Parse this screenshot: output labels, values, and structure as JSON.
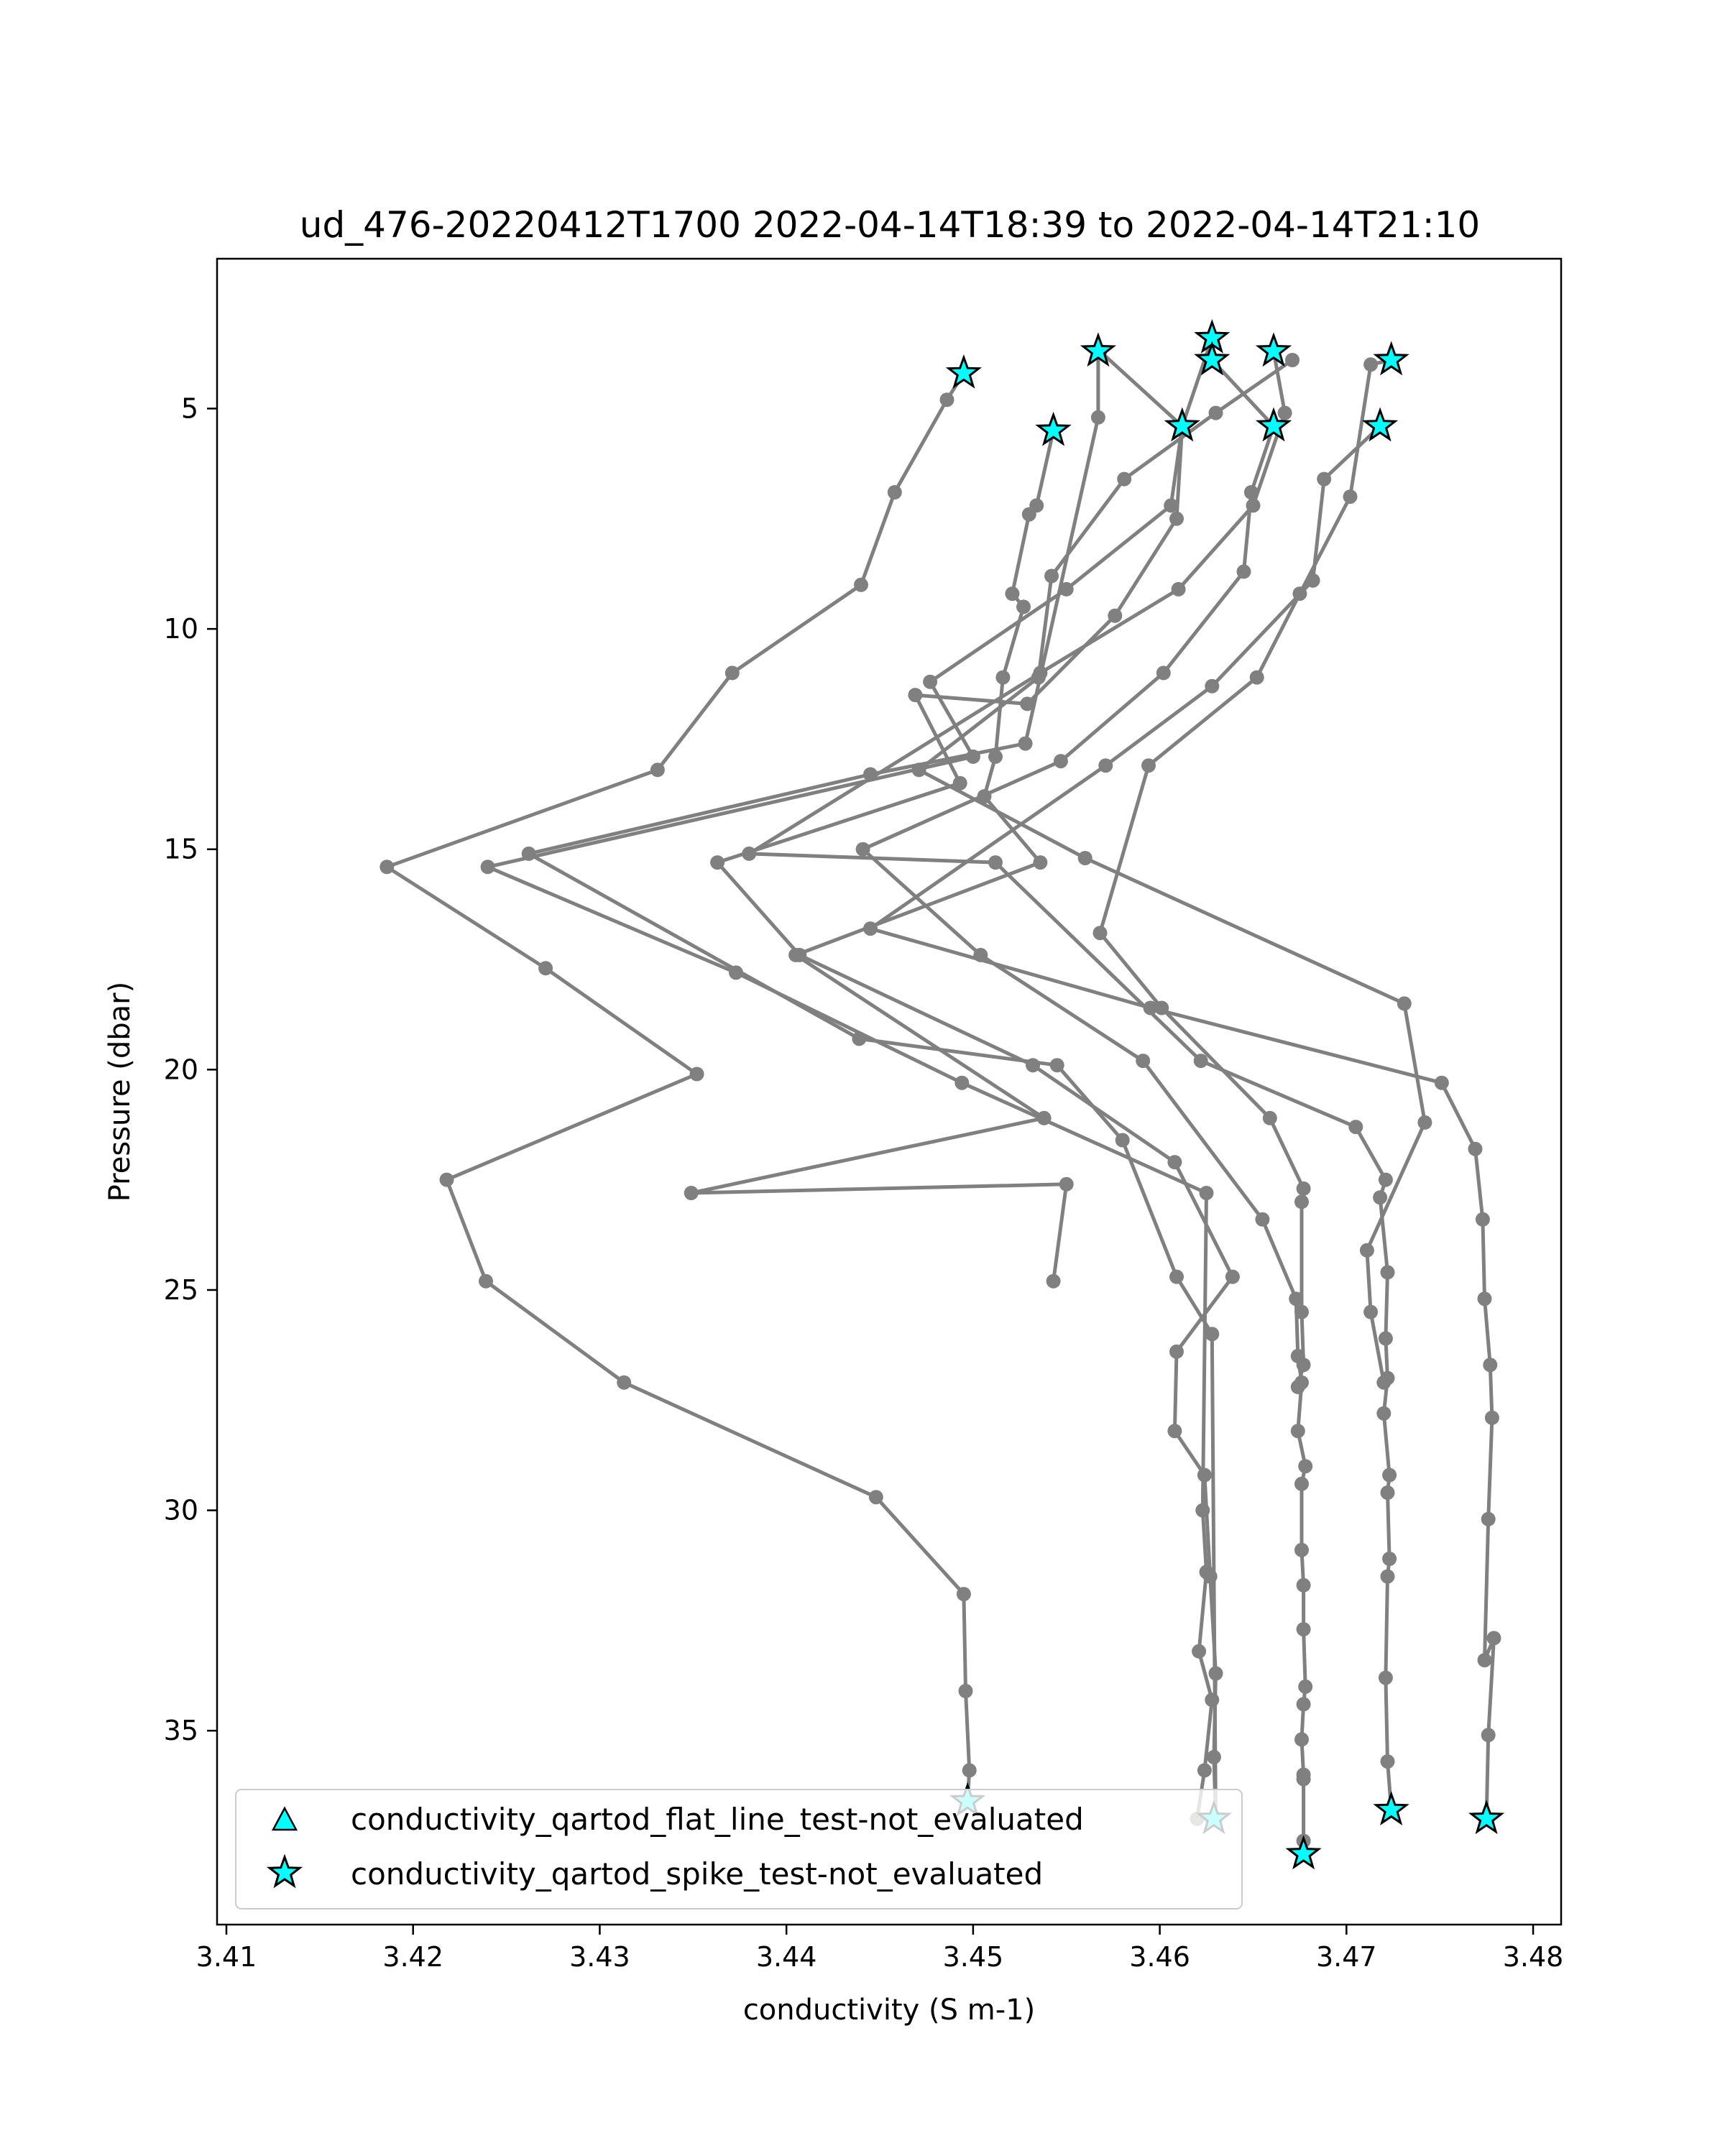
{
  "chart_data": {
    "type": "line",
    "title": "ud_476-20220412T1700 2022-04-14T18:39 to 2022-04-14T21:10",
    "xlabel": "conductivity (S m-1)",
    "ylabel": "Pressure (dbar)",
    "xlim": [
      3.4095,
      3.4815
    ],
    "ylim": [
      39.4,
      1.6
    ],
    "y_inverted": true,
    "x_ticks": [
      3.41,
      3.42,
      3.43,
      3.44,
      3.45,
      3.46,
      3.47,
      3.48
    ],
    "x_tick_labels": [
      "3.41",
      "3.42",
      "3.43",
      "3.44",
      "3.45",
      "3.46",
      "3.47",
      "3.48"
    ],
    "y_ticks": [
      5,
      10,
      15,
      20,
      25,
      30,
      35
    ],
    "y_tick_labels": [
      "5",
      "10",
      "15",
      "20",
      "25",
      "30",
      "35"
    ],
    "grid": false,
    "legend_position": "lower-left",
    "colors": {
      "line": "#808080",
      "marker": "#808080",
      "flag_fill": "#00FFFF",
      "flag_edge": "#000000"
    },
    "series": [
      {
        "x": [
          3.4495,
          3.4486,
          3.4458,
          3.444,
          3.4371,
          3.4331,
          3.4186,
          3.4271,
          3.4352,
          3.4218,
          3.4239,
          3.4313,
          3.4448,
          3.4495,
          3.4496,
          3.4498,
          3.4497
        ],
        "y": [
          4.2,
          4.8,
          6.9,
          9.0,
          11.0,
          13.2,
          15.4,
          17.7,
          20.1,
          22.5,
          24.8,
          27.1,
          29.7,
          31.9,
          34.1,
          35.9,
          36.6
        ]
      },
      {
        "x": [
          3.4543,
          3.4534,
          3.453,
          3.4521,
          3.4527,
          3.4516,
          3.4512,
          3.4506,
          3.4536,
          3.4405,
          3.4538,
          3.4349,
          3.455,
          3.4543
        ],
        "y": [
          5.5,
          7.2,
          7.4,
          9.2,
          9.5,
          11.1,
          12.9,
          13.8,
          15.3,
          17.4,
          21.1,
          22.8,
          22.6,
          24.8
        ]
      },
      {
        "x": [
          3.4567,
          3.4567,
          3.4528,
          3.4445,
          3.4262,
          3.4439,
          3.4545,
          3.458,
          3.4609,
          3.4628,
          3.463
        ],
        "y": [
          3.7,
          5.2,
          12.6,
          13.3,
          15.1,
          19.3,
          19.9,
          21.6,
          24.7,
          26.0,
          37.0
        ]
      },
      {
        "x": [
          3.4568,
          3.4612,
          3.4609,
          3.4576,
          3.4529,
          3.4469,
          3.4493,
          3.4363,
          3.4407,
          3.4532,
          3.4608,
          3.4639,
          3.4609,
          3.4608,
          3.4624,
          3.4627,
          3.463,
          3.4629,
          3.463
        ],
        "y": [
          3.7,
          5.4,
          7.5,
          9.7,
          11.7,
          11.5,
          13.5,
          15.3,
          17.4,
          19.9,
          22.1,
          24.7,
          26.4,
          28.2,
          29.2,
          31.5,
          33.7,
          35.6,
          37.0
        ]
      },
      {
        "x": [
          3.4628,
          3.4612,
          3.4606,
          3.455,
          3.4477,
          3.45,
          3.424,
          3.4373,
          3.4494,
          3.4625,
          3.4623,
          3.4625,
          3.4621,
          3.4628,
          3.4624,
          3.462,
          3.4628
        ],
        "y": [
          3.4,
          5.4,
          7.2,
          9.1,
          11.2,
          12.9,
          15.4,
          17.8,
          20.3,
          22.8,
          30.0,
          31.4,
          33.2,
          34.3,
          35.9,
          37.0,
          37.0
        ]
      },
      {
        "x": [
          3.4628,
          3.4661,
          3.4649,
          3.4645,
          3.4602,
          3.4547,
          3.4441,
          3.4504,
          3.4591,
          3.4655,
          3.4673,
          3.4674,
          3.4676,
          3.4674,
          3.4678,
          3.4676,
          3.4676,
          3.4677,
          3.4677,
          3.4678,
          3.4677,
          3.4676,
          3.4677,
          3.4677,
          3.4677,
          3.4677
        ],
        "y": [
          3.9,
          5.4,
          6.9,
          8.7,
          11.0,
          13.0,
          15.0,
          17.4,
          19.8,
          23.4,
          25.2,
          26.5,
          27.1,
          28.2,
          29.0,
          29.4,
          30.9,
          31.7,
          32.7,
          34.0,
          34.4,
          35.2,
          36.0,
          36.1,
          37.5,
          37.8
        ]
      },
      {
        "x": [
          3.4661,
          3.4667,
          3.465,
          3.461,
          3.4536,
          3.438,
          3.4512,
          3.4622,
          3.4705,
          3.4721,
          3.4718,
          3.4722,
          3.4721,
          3.4722,
          3.472,
          3.4723,
          3.4722,
          3.4723,
          3.4722,
          3.4721,
          3.4722,
          3.4724
        ],
        "y": [
          3.7,
          5.1,
          7.2,
          9.1,
          11.0,
          15.1,
          15.3,
          19.8,
          21.3,
          22.5,
          22.9,
          24.6,
          26.1,
          27.0,
          27.8,
          29.2,
          29.6,
          31.1,
          31.5,
          33.8,
          35.7,
          36.8
        ]
      },
      {
        "x": [
          3.4671,
          3.463,
          3.4581,
          3.4542,
          3.4535,
          3.4471,
          3.456,
          3.4731,
          3.4742,
          3.4711,
          3.4713,
          3.472
        ],
        "y": [
          3.9,
          5.1,
          6.6,
          8.8,
          11.1,
          13.2,
          15.2,
          18.5,
          21.2,
          24.1,
          25.5,
          27.1
        ]
      },
      {
        "x": [
          3.4718,
          3.4688,
          3.4682,
          3.4628,
          3.4571,
          3.4445,
          3.4595,
          3.4751,
          3.4769,
          3.4773,
          3.4774,
          3.4777,
          3.4778,
          3.4776,
          3.4774,
          3.4779,
          3.4776,
          3.4775
        ],
        "y": [
          5.4,
          6.6,
          8.9,
          11.3,
          13.1,
          16.8,
          18.6,
          20.3,
          21.8,
          23.4,
          25.2,
          26.7,
          27.9,
          30.2,
          33.4,
          32.9,
          35.1,
          37.0
        ]
      },
      {
        "x": [
          3.4724,
          3.4713,
          3.4702,
          3.4675,
          3.4652,
          3.4594,
          3.4568,
          3.4601,
          3.4659,
          3.4677,
          3.4676,
          3.4676,
          3.4677,
          3.4674
        ],
        "y": [
          3.9,
          4.0,
          7.0,
          9.2,
          11.1,
          13.1,
          16.9,
          18.6,
          21.1,
          22.7,
          23.0,
          25.5,
          26.7,
          27.2
        ]
      }
    ],
    "flagged_points": [
      {
        "x": 3.4495,
        "y": 4.2,
        "marker": "star"
      },
      {
        "x": 3.4567,
        "y": 3.7,
        "marker": "star"
      },
      {
        "x": 3.4628,
        "y": 3.4,
        "marker": "star"
      },
      {
        "x": 3.4628,
        "y": 3.9,
        "marker": "star"
      },
      {
        "x": 3.4661,
        "y": 3.7,
        "marker": "star"
      },
      {
        "x": 3.4724,
        "y": 3.9,
        "marker": "star"
      },
      {
        "x": 3.4543,
        "y": 5.5,
        "marker": "star"
      },
      {
        "x": 3.4612,
        "y": 5.4,
        "marker": "star"
      },
      {
        "x": 3.4661,
        "y": 5.4,
        "marker": "star"
      },
      {
        "x": 3.4718,
        "y": 5.4,
        "marker": "star"
      },
      {
        "x": 3.4497,
        "y": 36.6,
        "marker": "star"
      },
      {
        "x": 3.4629,
        "y": 37.0,
        "marker": "star"
      },
      {
        "x": 3.4677,
        "y": 37.8,
        "marker": "star"
      },
      {
        "x": 3.4724,
        "y": 36.8,
        "marker": "star"
      },
      {
        "x": 3.4775,
        "y": 37.0,
        "marker": "star"
      }
    ],
    "legend": [
      {
        "label": "conductivity_qartod_flat_line_test-not_evaluated",
        "marker": "triangle",
        "color": "#00FFFF"
      },
      {
        "label": "conductivity_qartod_spike_test-not_evaluated",
        "marker": "star",
        "color": "#00FFFF"
      }
    ]
  }
}
